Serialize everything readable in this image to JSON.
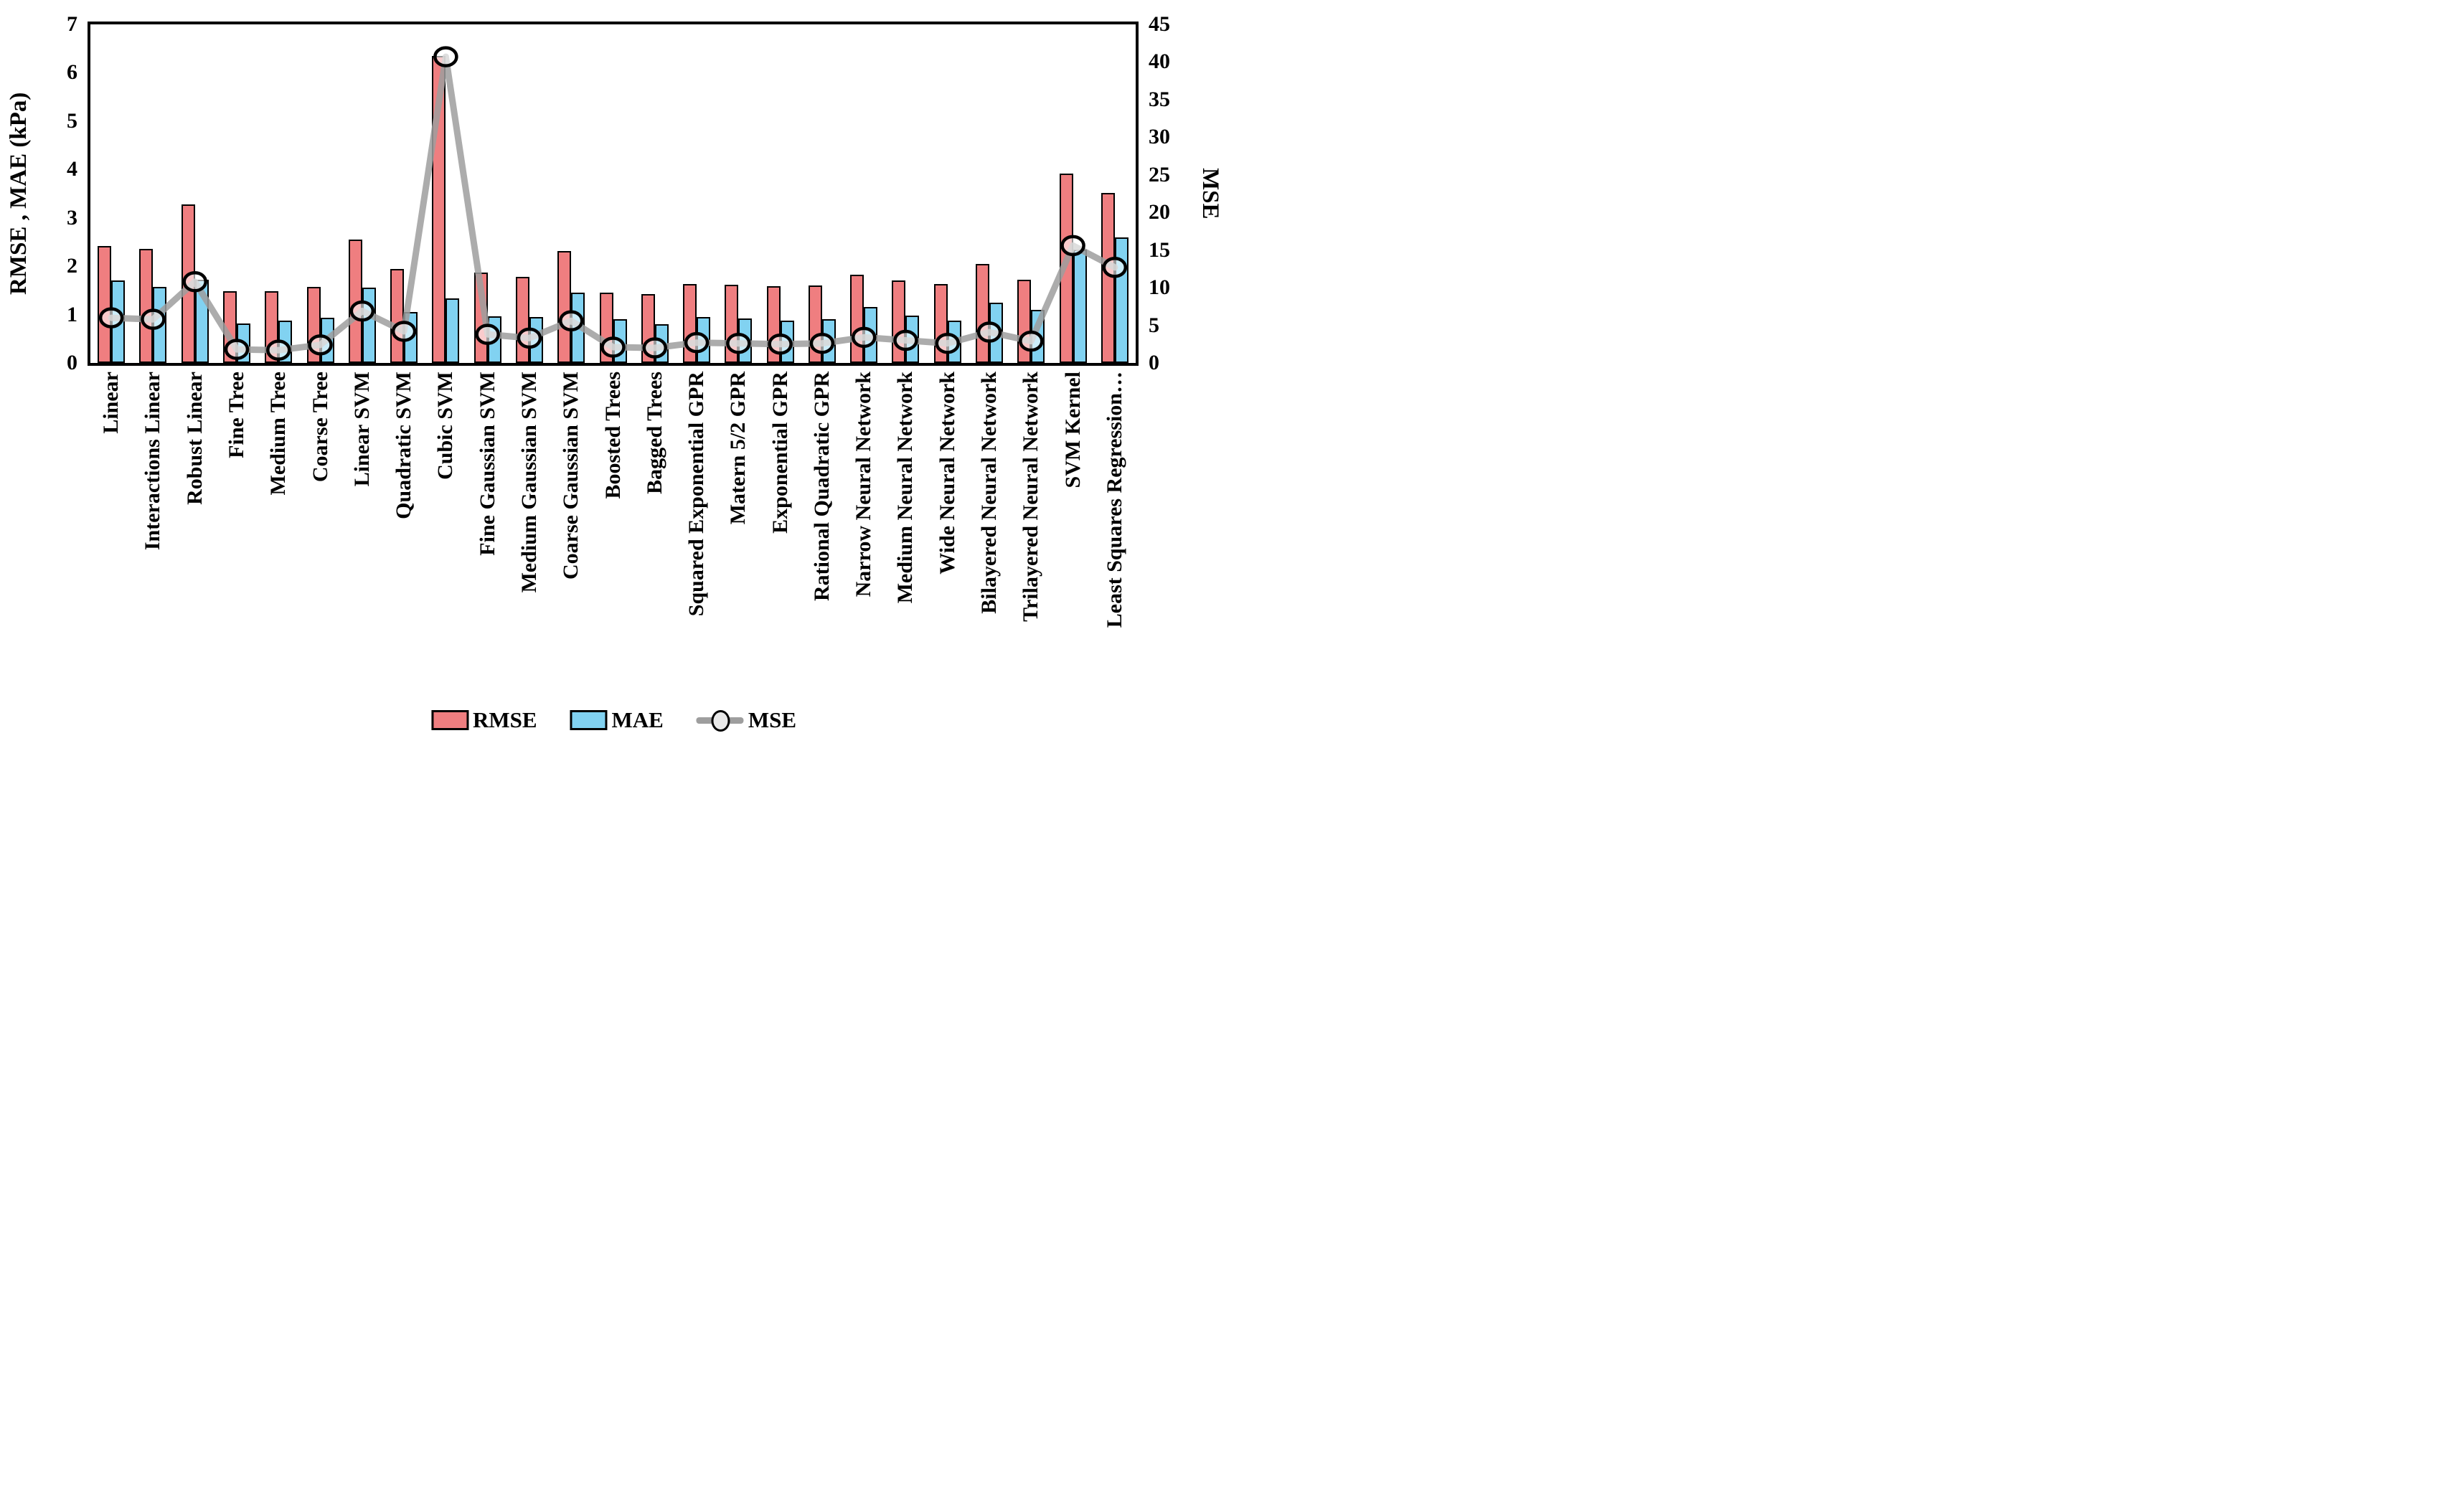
{
  "chart_data": {
    "type": "bar",
    "subtype": "grouped-bars-with-line-overlay",
    "title": "",
    "categories": [
      "Linear",
      "Interactions Linear",
      "Robust Linear",
      "Fine Tree",
      "Medium Tree",
      "Coarse Tree",
      "Linear SVM",
      "Quadratic SVM",
      "Cubic SVM",
      "Fine Gaussian SVM",
      "Medium Gaussian SVM",
      "Coarse Gaussian SVM",
      "Boosted Trees",
      "Bagged Trees",
      "Squared Exponential GPR",
      "Matern 5/2 GPR",
      "Exponential GPR",
      "Rational Quadratic GPR",
      "Narrow Neural Network",
      "Medium Neural Network",
      "Wide Neural Network",
      "Bilayered Neural Network",
      "Trilayered Neural Network",
      "SVM Kernel",
      "Least Squares Regression…"
    ],
    "series": [
      {
        "name": "RMSE",
        "type": "bar",
        "axis": "left",
        "color": "#EF7E80",
        "values": [
          2.42,
          2.36,
          3.28,
          1.48,
          1.48,
          1.57,
          2.55,
          1.95,
          6.35,
          1.87,
          1.78,
          2.32,
          1.45,
          1.42,
          1.63,
          1.62,
          1.58,
          1.6,
          1.82,
          1.7,
          1.63,
          2.04,
          1.72,
          3.92,
          3.52
        ]
      },
      {
        "name": "MAE",
        "type": "bar",
        "axis": "left",
        "color": "#81D2F1",
        "values": [
          1.7,
          1.57,
          1.72,
          0.82,
          0.88,
          0.93,
          1.55,
          1.05,
          1.33,
          0.97,
          0.95,
          1.46,
          0.9,
          0.8,
          0.95,
          0.92,
          0.88,
          0.9,
          1.15,
          0.98,
          0.88,
          1.25,
          1.1,
          2.35,
          2.6
        ]
      },
      {
        "name": "MSE",
        "type": "line",
        "axis": "right",
        "color": "#9E9E9E",
        "marker_fill": "#EDEDED",
        "values": [
          6.0,
          5.8,
          10.8,
          1.8,
          1.7,
          2.4,
          6.9,
          4.2,
          40.7,
          3.8,
          3.3,
          5.6,
          2.1,
          2.0,
          2.7,
          2.6,
          2.5,
          2.6,
          3.4,
          3.0,
          2.6,
          4.1,
          2.9,
          15.6,
          12.7
        ]
      }
    ],
    "left_axis": {
      "label": "RMSE , MAE (kPa)",
      "min": 0,
      "max": 7,
      "ticks": [
        0,
        1,
        2,
        3,
        4,
        5,
        6,
        7
      ]
    },
    "right_axis": {
      "label": "MSE",
      "min": 0,
      "max": 45,
      "ticks": [
        0,
        5,
        10,
        15,
        20,
        25,
        30,
        35,
        40,
        45
      ]
    },
    "legend": [
      "RMSE",
      "MAE",
      "MSE"
    ],
    "grid": false,
    "legend_position": "bottom-center"
  },
  "colors": {
    "bar_outline": "#000000",
    "plot_border": "#000000",
    "background": "#FFFFFF"
  }
}
